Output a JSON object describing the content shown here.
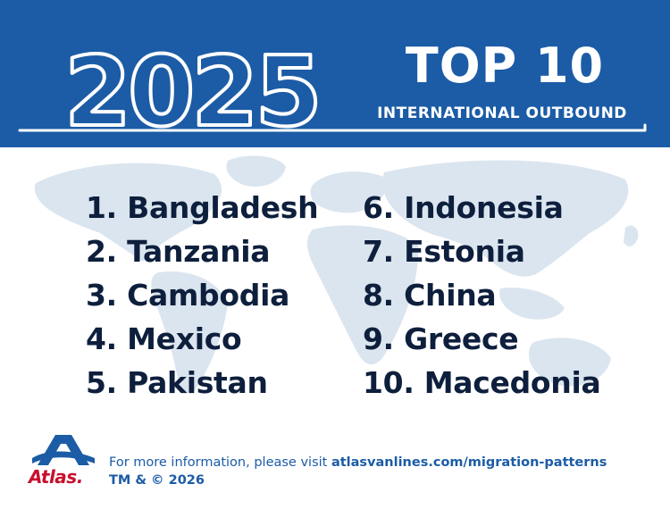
{
  "header": {
    "year": "2025",
    "title": "TOP 10",
    "subtitle": "INTERNATIONAL OUTBOUND"
  },
  "list": {
    "col1": [
      "1. Bangladesh",
      "2. Tanzania",
      "3. Cambodia",
      "4. Mexico",
      "5. Pakistan"
    ],
    "col2": [
      "6. Indonesia",
      "7. Estonia",
      "8. China",
      "9. Greece",
      "10. Macedonia"
    ]
  },
  "logo": {
    "wordmark": "Atlas."
  },
  "footer": {
    "info_text": "For more information, please visit ",
    "url": "atlasvanlines.com/migration-patterns",
    "trademark": "TM & © 2026"
  },
  "colors": {
    "header_bg": "#1c5ca6",
    "map": "#dbe5ef",
    "list_text": "#0d1f3c",
    "logo_red": "#c8102e",
    "footer_blue": "#1c5ca6"
  }
}
